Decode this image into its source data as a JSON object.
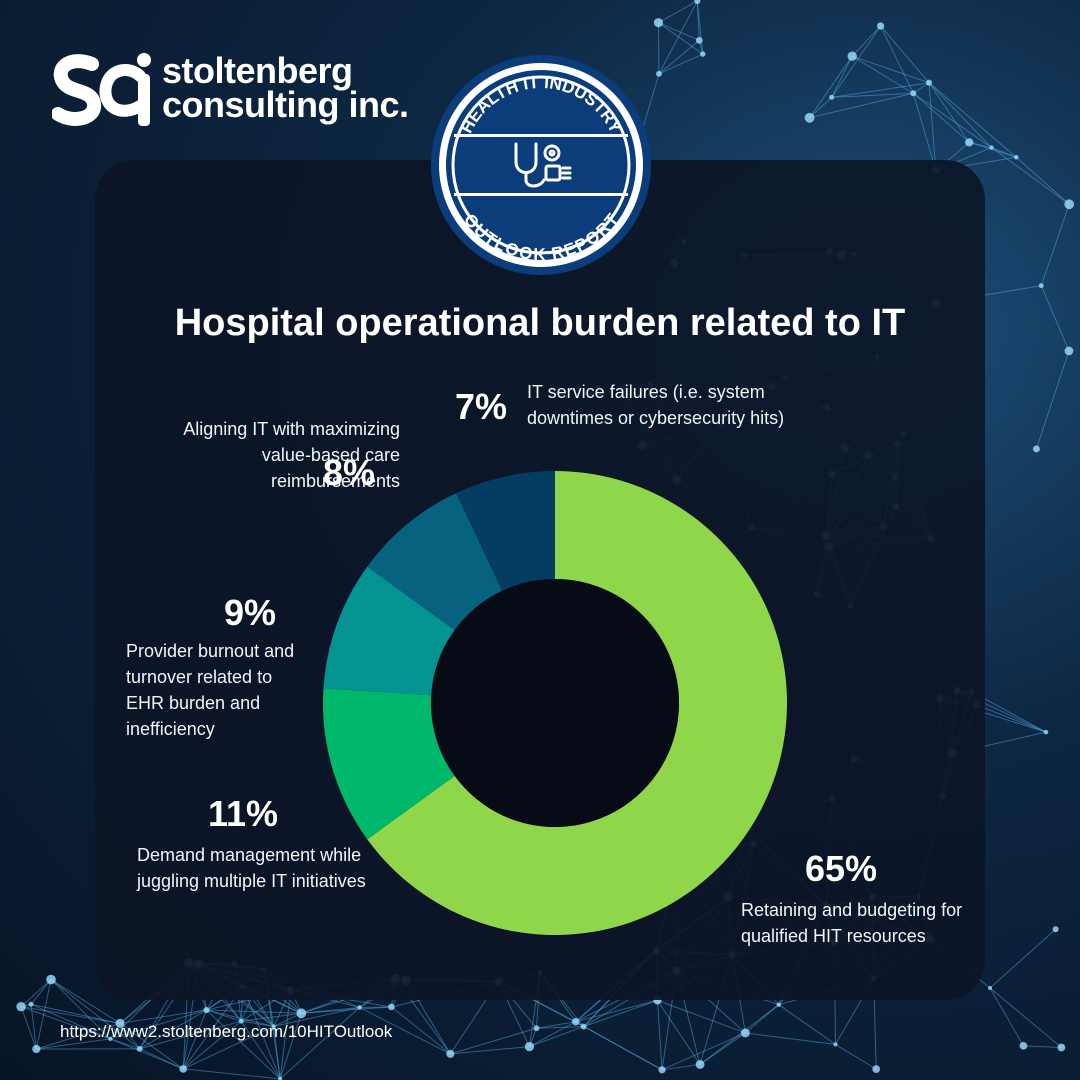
{
  "brand": {
    "line1": "stoltenberg",
    "line2": "consulting inc."
  },
  "badge": {
    "top_text": "HEALTH IT INDUSTRY",
    "bottom_text": "OUTLOOK REPORT"
  },
  "chart_data": {
    "type": "pie",
    "title": "Hospital operational burden related to IT",
    "slices": [
      {
        "label": "Retaining and budgeting for qualified HIT resources",
        "value": 65,
        "value_label": "65%",
        "color": "#8fd64a"
      },
      {
        "label": "Demand management while juggling multiple IT initiatives",
        "value": 11,
        "value_label": "11%",
        "color": "#00b86b"
      },
      {
        "label": "Provider burnout and turnover related to EHR burden and inefficiency",
        "value": 9,
        "value_label": "9%",
        "color": "#049391"
      },
      {
        "label": "Aligning IT with maximizing value-based care reimbursements",
        "value": 8,
        "value_label": "8%",
        "color": "#06627f"
      },
      {
        "label": "IT service failures (i.e. system downtimes or cybersecurity hits)",
        "value": 7,
        "value_label": "7%",
        "color": "#053c62"
      }
    ]
  },
  "footer": {
    "url": "https://www2.stoltenberg.com/10HITOutlook"
  }
}
